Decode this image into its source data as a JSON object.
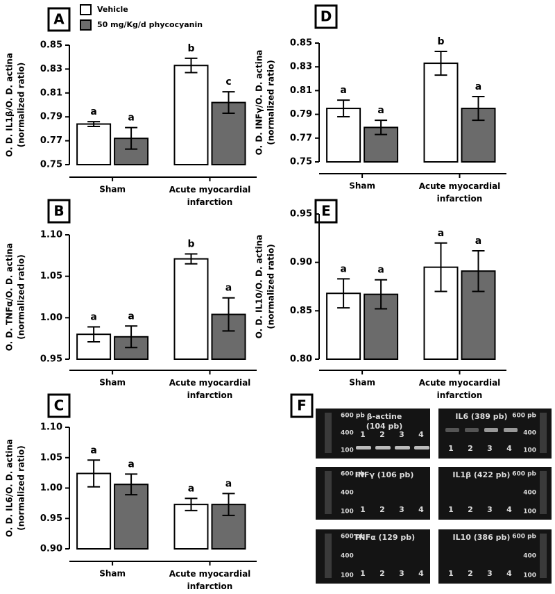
{
  "chart_data": [
    {
      "type": "bar",
      "panel": "A",
      "ylabel": [
        "O. D. IL1β/O. D. actina",
        "(normalized ratio)"
      ],
      "legend": true,
      "categories": [
        "Sham",
        "Acute myocardial infarction"
      ],
      "series": [
        {
          "name": "Vehicle",
          "color": "#ffffff",
          "values": [
            0.784,
            0.833
          ],
          "errors": [
            0.002,
            0.006
          ],
          "letters": [
            "a",
            "b"
          ]
        },
        {
          "name": "50 mg/Kg/d phycocyanin",
          "color": "#6b6b6b",
          "values": [
            0.772,
            0.802
          ],
          "errors": [
            0.009,
            0.009
          ],
          "letters": [
            "a",
            "c"
          ]
        }
      ],
      "ylim": [
        0.75,
        0.85
      ],
      "yticks": [
        0.75,
        0.77,
        0.79,
        0.81,
        0.83,
        0.85
      ]
    },
    {
      "type": "bar",
      "panel": "B",
      "ylabel": [
        "O. D. TNFα/O. D. actina",
        "(normalized ratio)"
      ],
      "categories": [
        "Sham",
        "Acute myocardial infarction"
      ],
      "series": [
        {
          "name": "Vehicle",
          "color": "#ffffff",
          "values": [
            0.98,
            1.071
          ],
          "errors": [
            0.009,
            0.006
          ],
          "letters": [
            "a",
            "b"
          ]
        },
        {
          "name": "50 mg/Kg/d phycocyanin",
          "color": "#6b6b6b",
          "values": [
            0.977,
            1.004
          ],
          "errors": [
            0.013,
            0.02
          ],
          "letters": [
            "a",
            "a"
          ]
        }
      ],
      "ylim": [
        0.95,
        1.1
      ],
      "yticks": [
        0.95,
        {
          "value": 1,
          "label": "1.00"
        },
        1.05,
        {
          "value": 1.1,
          "label": "1.10"
        }
      ]
    },
    {
      "type": "bar",
      "panel": "C",
      "ylabel": [
        "O. D. IL6/O. D. actina",
        "(normalized ratio)"
      ],
      "categories": [
        "Sham",
        "Acute myocardial infarction"
      ],
      "series": [
        {
          "name": "Vehicle",
          "color": "#ffffff",
          "values": [
            1.024,
            0.973
          ],
          "errors": [
            0.022,
            0.01
          ],
          "letters": [
            "a",
            "a"
          ]
        },
        {
          "name": "50 mg/Kg/d phycocyanin",
          "color": "#6b6b6b",
          "values": [
            1.006,
            0.973
          ],
          "errors": [
            0.017,
            0.018
          ],
          "letters": [
            "a",
            "a"
          ]
        }
      ],
      "ylim": [
        0.9,
        1.1
      ],
      "yticks": [
        {
          "value": 0.9,
          "label": "0.90"
        },
        0.95,
        {
          "value": 1,
          "label": "1.00"
        },
        1.05,
        {
          "value": 1.1,
          "label": "1.10"
        }
      ]
    },
    {
      "type": "bar",
      "panel": "D",
      "ylabel": [
        "O. D. INFγ/O. D. actina",
        "(normalized ratio)"
      ],
      "categories": [
        "Sham",
        "Acute myocardial infarction"
      ],
      "series": [
        {
          "name": "Vehicle",
          "color": "#ffffff",
          "values": [
            0.795,
            0.833
          ],
          "errors": [
            0.007,
            0.01
          ],
          "letters": [
            "a",
            "b"
          ]
        },
        {
          "name": "50 mg/Kg/d phycocyanin",
          "color": "#6b6b6b",
          "values": [
            0.779,
            0.795
          ],
          "errors": [
            0.006,
            0.01
          ],
          "letters": [
            "a",
            "a"
          ]
        }
      ],
      "ylim": [
        0.75,
        0.85
      ],
      "yticks": [
        0.75,
        0.77,
        0.79,
        0.81,
        0.83,
        0.85
      ]
    },
    {
      "type": "bar",
      "panel": "E",
      "ylabel": [
        "O. D. IL10/O. D. actina",
        "(normalized ratio)"
      ],
      "categories": [
        "Sham",
        "Acute myocardial infarction"
      ],
      "series": [
        {
          "name": "Vehicle",
          "color": "#ffffff",
          "values": [
            0.868,
            0.895
          ],
          "errors": [
            0.015,
            0.025
          ],
          "letters": [
            "a",
            "a"
          ]
        },
        {
          "name": "50 mg/Kg/d phycocyanin",
          "color": "#6b6b6b",
          "values": [
            0.867,
            0.891
          ],
          "errors": [
            0.015,
            0.021
          ],
          "letters": [
            "a",
            "a"
          ]
        }
      ],
      "ylim": [
        0.8,
        0.95
      ],
      "yticks": [
        {
          "value": 0.8,
          "label": "0.80"
        },
        0.85,
        {
          "value": 0.9,
          "label": "0.90"
        },
        0.95
      ]
    }
  ],
  "gel_panel": {
    "panel": "F",
    "gels": [
      {
        "title": [
          "β-actine",
          "(104 pb)"
        ],
        "markers": [
          "600 pb",
          "400",
          "100"
        ],
        "lanes": [
          "1",
          "2",
          "3",
          "4"
        ]
      },
      {
        "title": [
          "IL6 (389 pb)"
        ],
        "markers": [
          "600 pb",
          "400",
          "100"
        ],
        "lanes": [
          "1",
          "2",
          "3",
          "4"
        ]
      },
      {
        "title": [
          "INFγ (106 pb)"
        ],
        "markers": [
          "600 pb",
          "400",
          "100"
        ],
        "lanes": [
          "1",
          "2",
          "3",
          "4"
        ]
      },
      {
        "title": [
          "IL1β (422 pb)"
        ],
        "markers": [
          "600 pb",
          "400",
          "100"
        ],
        "lanes": [
          "1",
          "2",
          "3",
          "4"
        ]
      },
      {
        "title": [
          "TNFα (129 pb)"
        ],
        "markers": [
          "600 pb",
          "400",
          "100"
        ],
        "lanes": [
          "1",
          "2",
          "3",
          "4"
        ]
      },
      {
        "title": [
          "IL10 (386 pb)"
        ],
        "markers": [
          "600 pb",
          "400",
          "100"
        ],
        "lanes": [
          "1",
          "2",
          "3",
          "4"
        ]
      }
    ]
  }
}
